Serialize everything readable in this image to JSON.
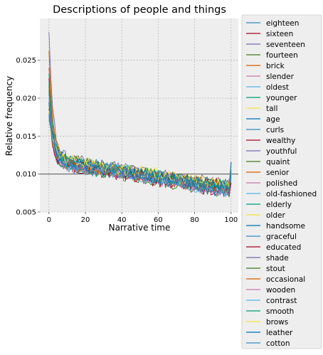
{
  "chart_data": {
    "type": "line",
    "title": "Descriptions of people and things",
    "xlabel": "Narrative time",
    "ylabel": "Relative frequency",
    "xlim": [
      -5,
      104
    ],
    "ylim": [
      0.005,
      0.0305
    ],
    "xticks": [
      0,
      20,
      40,
      60,
      80,
      100
    ],
    "yticks": [
      0.005,
      0.01,
      0.015,
      0.02,
      0.025
    ],
    "ytick_labels": [
      "0.005",
      "0.010",
      "0.015",
      "0.020",
      "0.025"
    ],
    "reference_line_y": 0.01,
    "grid": true,
    "legend_placement": "outside-right",
    "colors": [
      "#348ABD",
      "#A60628",
      "#7A68A6",
      "#467821",
      "#D55E00",
      "#CC79A7",
      "#56B4E9",
      "#009E73",
      "#F0E442",
      "#0072B2"
    ],
    "series": [
      {
        "name": "eighteen",
        "start": 0.0195
      },
      {
        "name": "sixteen",
        "start": 0.0185
      },
      {
        "name": "seventeen",
        "start": 0.0287
      },
      {
        "name": "fourteen",
        "start": 0.0205
      },
      {
        "name": "brick",
        "start": 0.0262
      },
      {
        "name": "slender",
        "start": 0.0178
      },
      {
        "name": "oldest",
        "start": 0.0212
      },
      {
        "name": "younger",
        "start": 0.0232
      },
      {
        "name": "tall",
        "start": 0.0188
      },
      {
        "name": "age",
        "start": 0.02
      },
      {
        "name": "curls",
        "start": 0.0172
      },
      {
        "name": "wealthy",
        "start": 0.0226
      },
      {
        "name": "youthful",
        "start": 0.0196
      },
      {
        "name": "quaint",
        "start": 0.021
      },
      {
        "name": "senior",
        "start": 0.024
      },
      {
        "name": "polished",
        "start": 0.0182
      },
      {
        "name": "old-fashioned",
        "start": 0.0201
      },
      {
        "name": "elderly",
        "start": 0.0218
      },
      {
        "name": "older",
        "start": 0.019
      },
      {
        "name": "handsome",
        "start": 0.0176
      },
      {
        "name": "graceful",
        "start": 0.0207
      },
      {
        "name": "educated",
        "start": 0.0186
      },
      {
        "name": "shade",
        "start": 0.0193
      },
      {
        "name": "stout",
        "start": 0.0215
      },
      {
        "name": "occasional",
        "start": 0.0181
      },
      {
        "name": "wooden",
        "start": 0.0198
      },
      {
        "name": "contrast",
        "start": 0.0203
      },
      {
        "name": "smooth",
        "start": 0.0222
      },
      {
        "name": "brows",
        "start": 0.0184
      },
      {
        "name": "leather",
        "start": 0.0194
      },
      {
        "name": "cotton",
        "start": 0.0179
      }
    ]
  }
}
